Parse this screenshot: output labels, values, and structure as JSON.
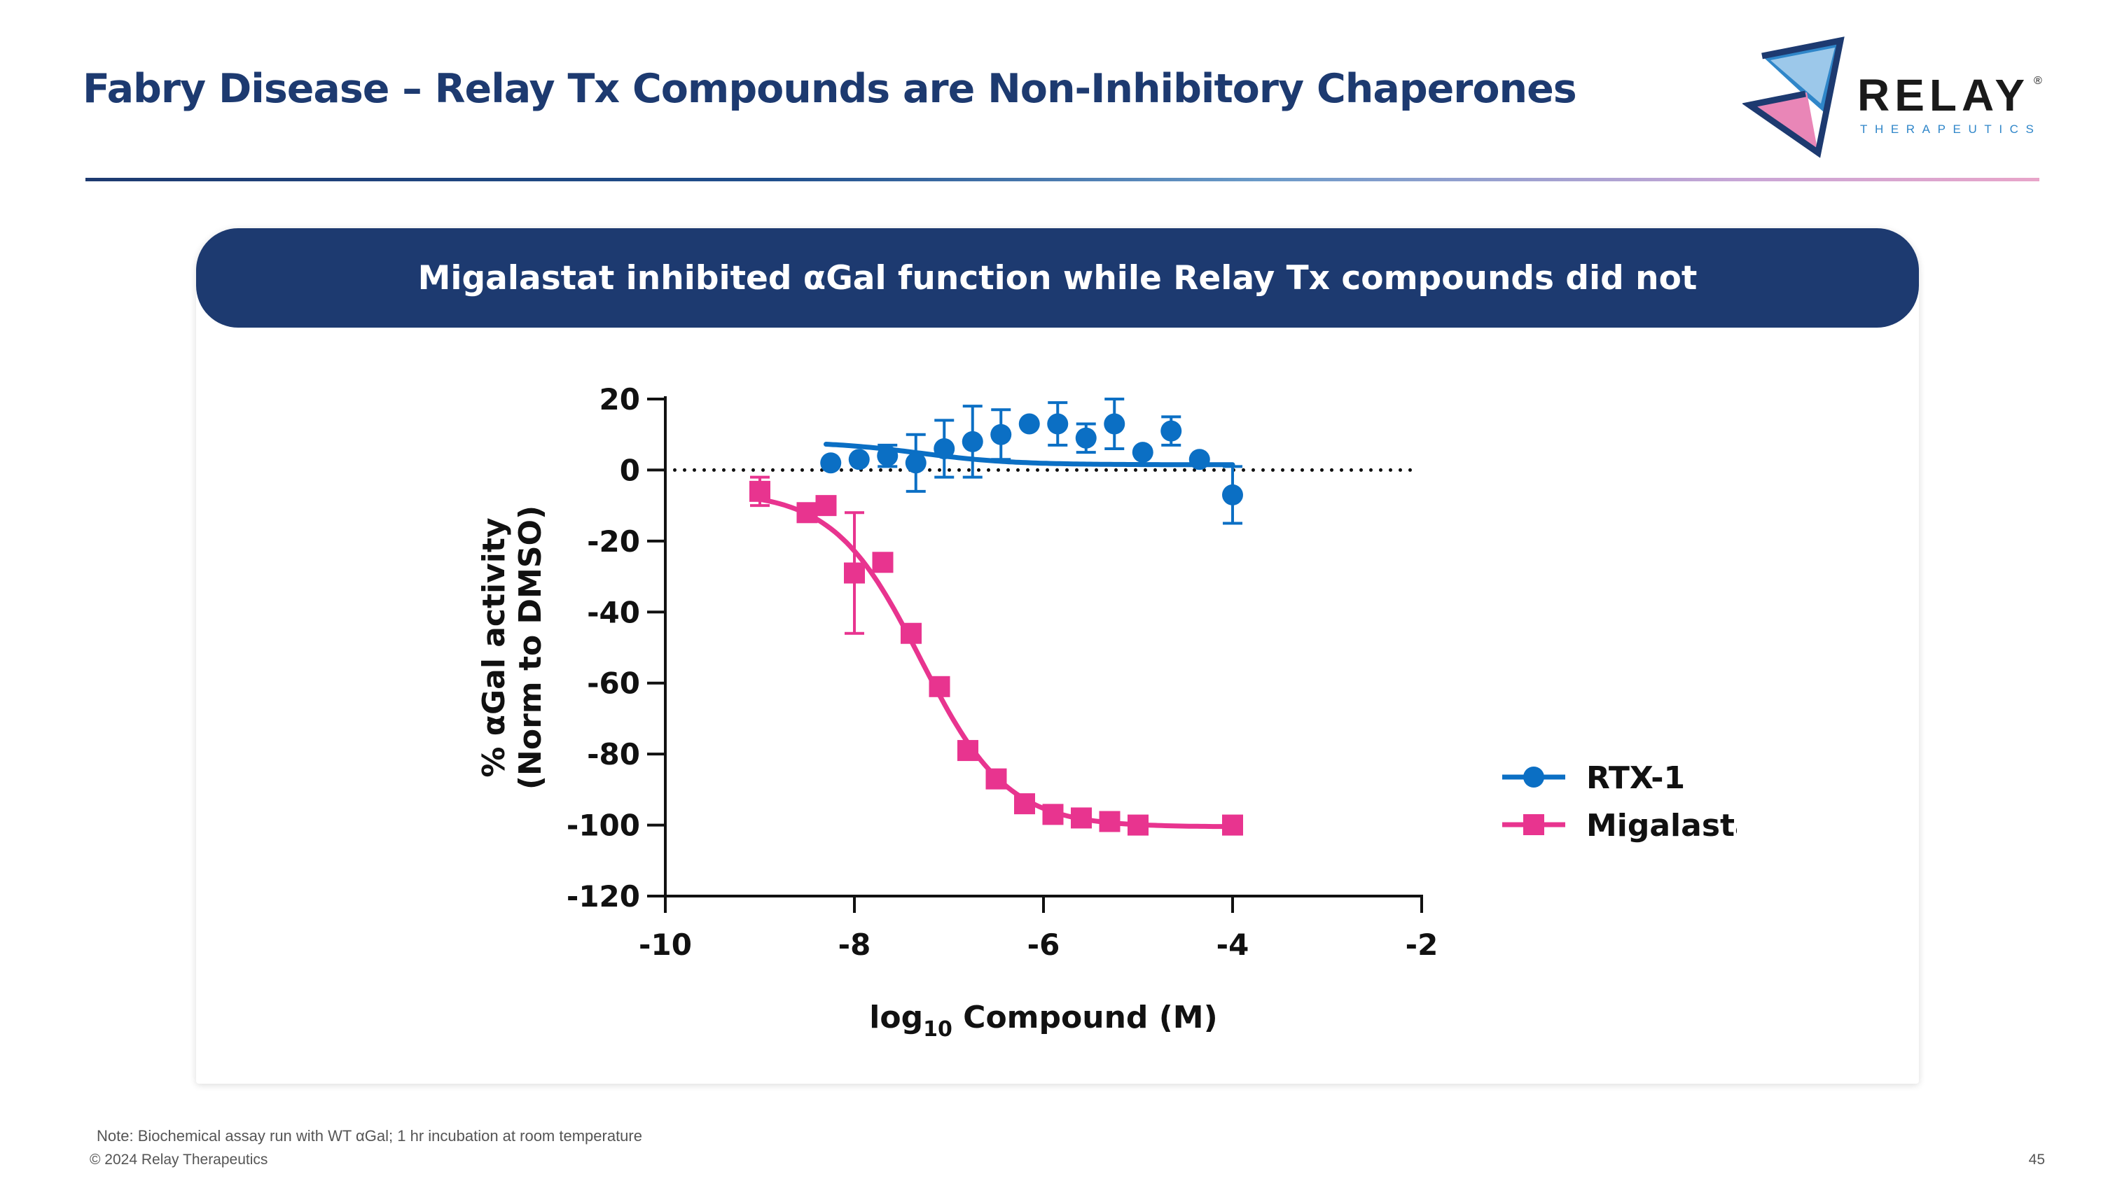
{
  "slide": {
    "title": "Fabry Disease – Relay Tx Compounds are Non-Inhibitory Chaperones",
    "banner": "Migalastat inhibited αGal function while Relay Tx compounds did not",
    "note": "Note: Biochemical assay run with WT αGal; 1 hr incubation at room temperature",
    "copyright": "© 2024 Relay Therapeutics",
    "page_number": "45"
  },
  "logo": {
    "wordmark": "RELAY",
    "registered": "®",
    "tagline": "THERAPEUTICS",
    "colors": {
      "navy": "#1d3a70",
      "blue": "#2f86c9",
      "pink": "#e986b7"
    }
  },
  "chart_data": {
    "type": "scatter",
    "xlabel_prefix": "log",
    "xlabel_sub": "10",
    "xlabel_suffix": " Compound (M)",
    "ylabel_line1": "% αGal activity",
    "ylabel_line2": "(Norm to DMSO)",
    "xlim": [
      -10,
      -2
    ],
    "ylim": [
      -120,
      20
    ],
    "xticks": [
      -10,
      -8,
      -6,
      -4,
      -2
    ],
    "yticks": [
      20,
      0,
      -20,
      -40,
      -60,
      -80,
      -100,
      -120
    ],
    "reference_line": {
      "y": 0,
      "x_range": [
        -9.9,
        -2.1
      ],
      "style": "dotted"
    },
    "legend_position": "right",
    "series": [
      {
        "name": "RTX-1",
        "color": "#0b6fc4",
        "marker": "circle",
        "x": [
          -8.25,
          -7.95,
          -7.65,
          -7.35,
          -7.05,
          -6.75,
          -6.45,
          -6.15,
          -5.85,
          -5.55,
          -5.25,
          -4.95,
          -4.65,
          -4.35,
          -4.0
        ],
        "y": [
          2,
          3,
          4,
          2,
          6,
          8,
          10,
          13,
          13,
          9,
          13,
          5,
          11,
          3,
          -7
        ],
        "error": [
          0,
          0,
          3,
          8,
          8,
          10,
          7,
          0,
          6,
          4,
          7,
          0,
          4,
          0,
          8
        ],
        "fit": {
          "bottom": 1.5,
          "top": 8,
          "log_ec50": -7.3,
          "hill": 0.9,
          "x_range": [
            -8.3,
            -4.0
          ]
        }
      },
      {
        "name": "Migalastat",
        "color": "#e8348f",
        "marker": "square",
        "x": [
          -9.0,
          -8.5,
          -8.3,
          -8.0,
          -7.7,
          -7.4,
          -7.1,
          -6.8,
          -6.5,
          -6.2,
          -5.9,
          -5.6,
          -5.3,
          -5.0,
          -4.0
        ],
        "y": [
          -6,
          -12,
          -10,
          -29,
          -26,
          -46,
          -61,
          -79,
          -87,
          -94,
          -97,
          -98,
          -99,
          -100,
          -100
        ],
        "error": [
          4,
          0,
          0,
          17,
          0,
          0,
          0,
          0,
          0,
          0,
          0,
          0,
          0,
          0,
          0
        ],
        "fit": {
          "top": -6,
          "bottom": -100.5,
          "log_ec50": -7.3,
          "hill": 0.95,
          "x_range": [
            -9.0,
            -4.0
          ]
        }
      }
    ]
  }
}
